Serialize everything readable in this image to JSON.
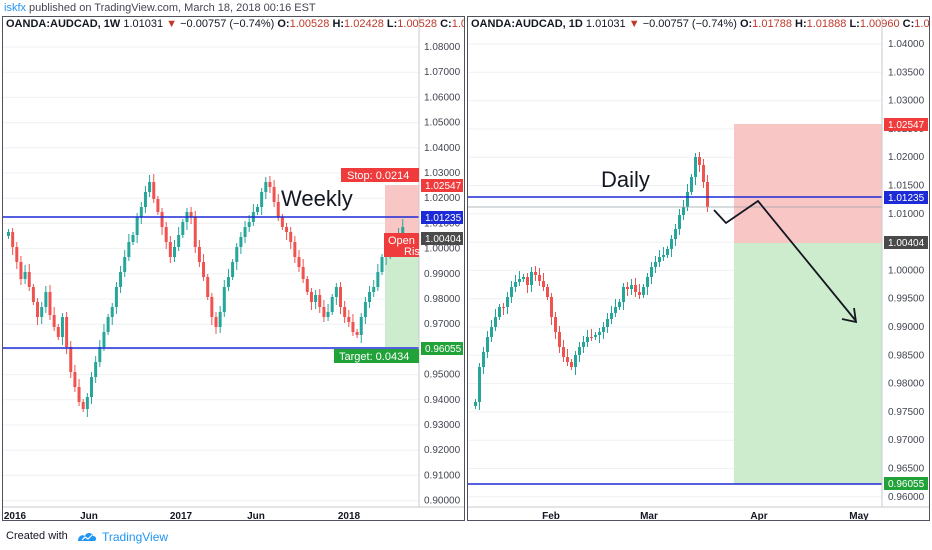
{
  "header": {
    "user": "iskfx",
    "published": " published on TradingView.com, March 18, 2018 00:16 EST"
  },
  "left_chart": {
    "symbol": "OANDA:AUDCAD, 1W",
    "price": "1.01031",
    "change": "−0.00757 (−0.74%)",
    "o_label": "O:",
    "o": "1.00528",
    "h_label": "H:",
    "h": "1.02428",
    "l_label": "L:",
    "l": "1.00528",
    "c_label": "C:",
    "c": "1.0",
    "annotation": "Weekly",
    "stop_label": "Stop: 0.0214",
    "target_label": "Target: 0.0434",
    "open_label": "Open",
    "risk_label": "Ris",
    "price_scale": [
      "1.08000",
      "1.07000",
      "1.06000",
      "1.05000",
      "1.04000",
      "1.03000",
      "1.02000",
      "1.01000",
      "1.00000",
      "0.99000",
      "0.98000",
      "0.97000",
      "0.96000",
      "0.95000",
      "0.94000",
      "0.93000",
      "0.92000",
      "0.91000",
      "0.90000"
    ],
    "time_labels": [
      "2016",
      "Jun",
      "2017",
      "Jun",
      "2018"
    ],
    "levels": {
      "stop": "1.02547",
      "entry": "1.01235",
      "current": "1.00404",
      "target": "0.96055"
    }
  },
  "right_chart": {
    "symbol": "OANDA:AUDCAD, 1D",
    "price": "1.01031",
    "change": "−0.00757 (−0.74%)",
    "o_label": "O:",
    "o": "1.01788",
    "h_label": "H:",
    "h": "1.01888",
    "l_label": "L:",
    "l": "1.00960",
    "c_label": "C:",
    "c": "1.01",
    "annotation": "Daily",
    "price_scale": [
      "1.04000",
      "1.03500",
      "1.03000",
      "1.02500",
      "1.02000",
      "1.01500",
      "1.01000",
      "1.00500",
      "1.00000",
      "0.99500",
      "0.99000",
      "0.98500",
      "0.98000",
      "0.97500",
      "0.97000",
      "0.96500",
      "0.96000"
    ],
    "time_labels": [
      "Feb",
      "Mar",
      "Apr",
      "May"
    ],
    "levels": {
      "stop": "1.02547",
      "entry": "1.01235",
      "current": "1.00404",
      "target": "0.96055"
    }
  },
  "footer": {
    "created": "Created with",
    "brand": "TradingView"
  },
  "colors": {
    "up": "#26a69a",
    "down": "#ef5350",
    "level": "#1d2bd6",
    "stop_zone": "#f9c6c6",
    "target_zone": "#cdebcd"
  }
}
